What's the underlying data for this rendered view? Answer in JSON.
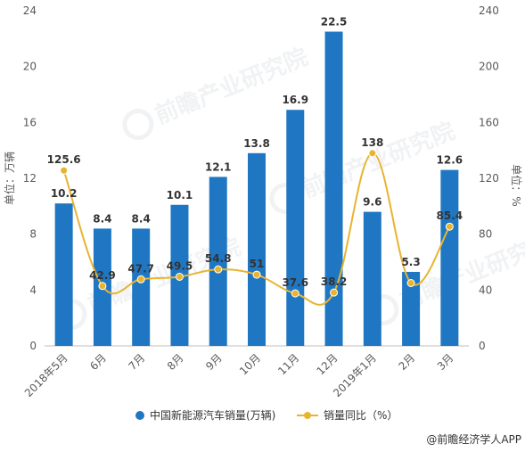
{
  "chart_data": {
    "type": "bar+line",
    "categories": [
      "2018年5月",
      "6月",
      "7月",
      "8月",
      "9月",
      "10月",
      "11月",
      "12月",
      "2019年1月",
      "2月",
      "3月"
    ],
    "series": [
      {
        "name": "中国新能源汽车销量(万辆)",
        "type": "bar",
        "axis": "left",
        "color": "#1f77c4",
        "values": [
          10.2,
          8.4,
          8.4,
          10.1,
          12.1,
          13.8,
          16.9,
          22.5,
          9.6,
          5.3,
          12.6
        ]
      },
      {
        "name": "销量同比（%）",
        "type": "line",
        "axis": "right",
        "color": "#e8b430",
        "values": [
          125.6,
          42.9,
          47.7,
          49.5,
          54.8,
          51,
          37.6,
          38.2,
          138,
          45,
          85.4
        ],
        "labels": [
          "125.6",
          "42.9",
          "47.7",
          "49.5",
          "54.8",
          "51",
          "37.6",
          "38.2",
          "138",
          "",
          "85.4"
        ]
      }
    ],
    "y_left": {
      "label": "单位：万辆",
      "min": 0,
      "max": 24,
      "ticks": [
        0,
        4,
        8,
        12,
        16,
        20,
        24
      ]
    },
    "y_right": {
      "label": "单位：%",
      "min": 0,
      "max": 240,
      "ticks": [
        0,
        40,
        80,
        120,
        160,
        200,
        240
      ]
    },
    "grid": false,
    "legend_position": "bottom"
  },
  "watermark": "前瞻产业研究院",
  "source_text": "@前瞻经济学人APP"
}
